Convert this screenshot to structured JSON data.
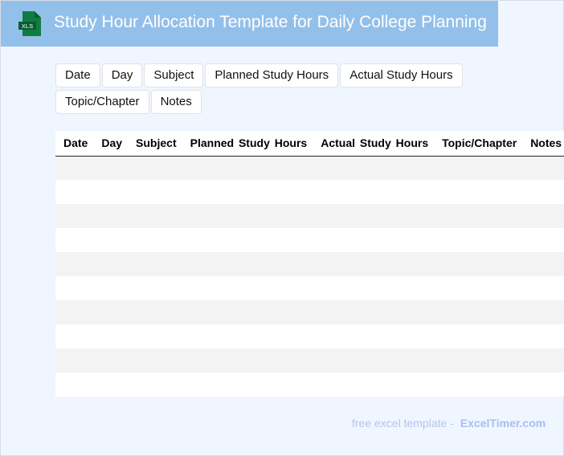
{
  "header": {
    "title": "Study Hour Allocation Template for Daily College Planning",
    "logo_text": "XLS",
    "icon": "excel-file-icon"
  },
  "chips": [
    "Date",
    "Day",
    "Subject",
    "Planned Study Hours",
    "Actual Study Hours",
    "Topic/Chapter",
    "Notes"
  ],
  "table": {
    "columns": [
      "Date",
      "Day",
      "Subject",
      "Planned Study Hours",
      "Actual Study Hours",
      "Topic/Chapter",
      "Notes"
    ],
    "row_count": 10
  },
  "footer": {
    "text": "free excel template -",
    "brand": "ExcelTimer.com"
  },
  "colors": {
    "title_bar": "#93c0ea",
    "background": "#f0f6ff",
    "logo": "#107c41"
  }
}
